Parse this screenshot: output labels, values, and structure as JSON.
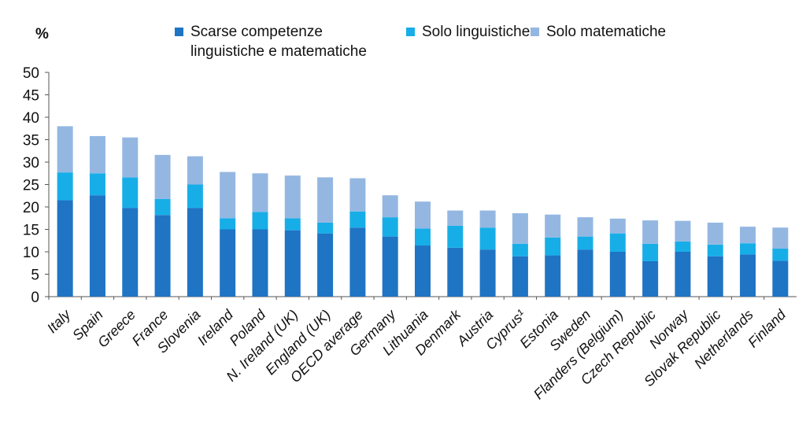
{
  "chart_data": {
    "type": "bar",
    "stacked": true,
    "unit_label": "%",
    "ylim": [
      0,
      50
    ],
    "yticks": [
      0,
      5,
      10,
      15,
      20,
      25,
      30,
      35,
      40,
      45,
      50
    ],
    "grid": false,
    "legend_position": "top",
    "categories": [
      "Italy",
      "Spain",
      "Greece",
      "France",
      "Slovenia",
      "Ireland",
      "Poland",
      "N. Ireland (UK)",
      "England (UK)",
      "OECD average",
      "Germany",
      "Lithuania",
      "Denmark",
      "Austria",
      "Cyprus¹",
      "Estonia",
      "Sweden",
      "Flanders (Belgium)",
      "Czech Republic",
      "Norway",
      "Slovak Republic",
      "Netherlands",
      "Finland"
    ],
    "series": [
      {
        "name": "Scarse competenze linguistiche e matematiche",
        "color": "#1f74c4",
        "values": [
          21.5,
          22.6,
          19.8,
          18.2,
          19.8,
          15.0,
          15.0,
          14.8,
          14.1,
          15.4,
          13.4,
          11.4,
          10.9,
          10.5,
          9.0,
          9.2,
          10.5,
          10.0,
          7.9,
          10.0,
          9.0,
          9.4,
          8.0
        ]
      },
      {
        "name": "Solo linguistiche",
        "color": "#17aee8",
        "values": [
          6.2,
          4.9,
          6.8,
          3.6,
          5.2,
          2.5,
          3.9,
          2.7,
          2.4,
          3.6,
          4.3,
          3.8,
          4.9,
          4.9,
          2.8,
          4.0,
          2.9,
          4.1,
          3.9,
          2.3,
          2.6,
          2.5,
          2.7
        ]
      },
      {
        "name": "Solo matematiche",
        "color": "#94b7e2",
        "values": [
          10.3,
          8.3,
          8.9,
          9.8,
          6.3,
          10.3,
          8.6,
          9.5,
          10.1,
          7.4,
          4.9,
          6.0,
          3.4,
          3.8,
          6.8,
          5.1,
          4.3,
          3.3,
          5.2,
          4.6,
          4.9,
          3.7,
          4.7
        ]
      }
    ]
  }
}
